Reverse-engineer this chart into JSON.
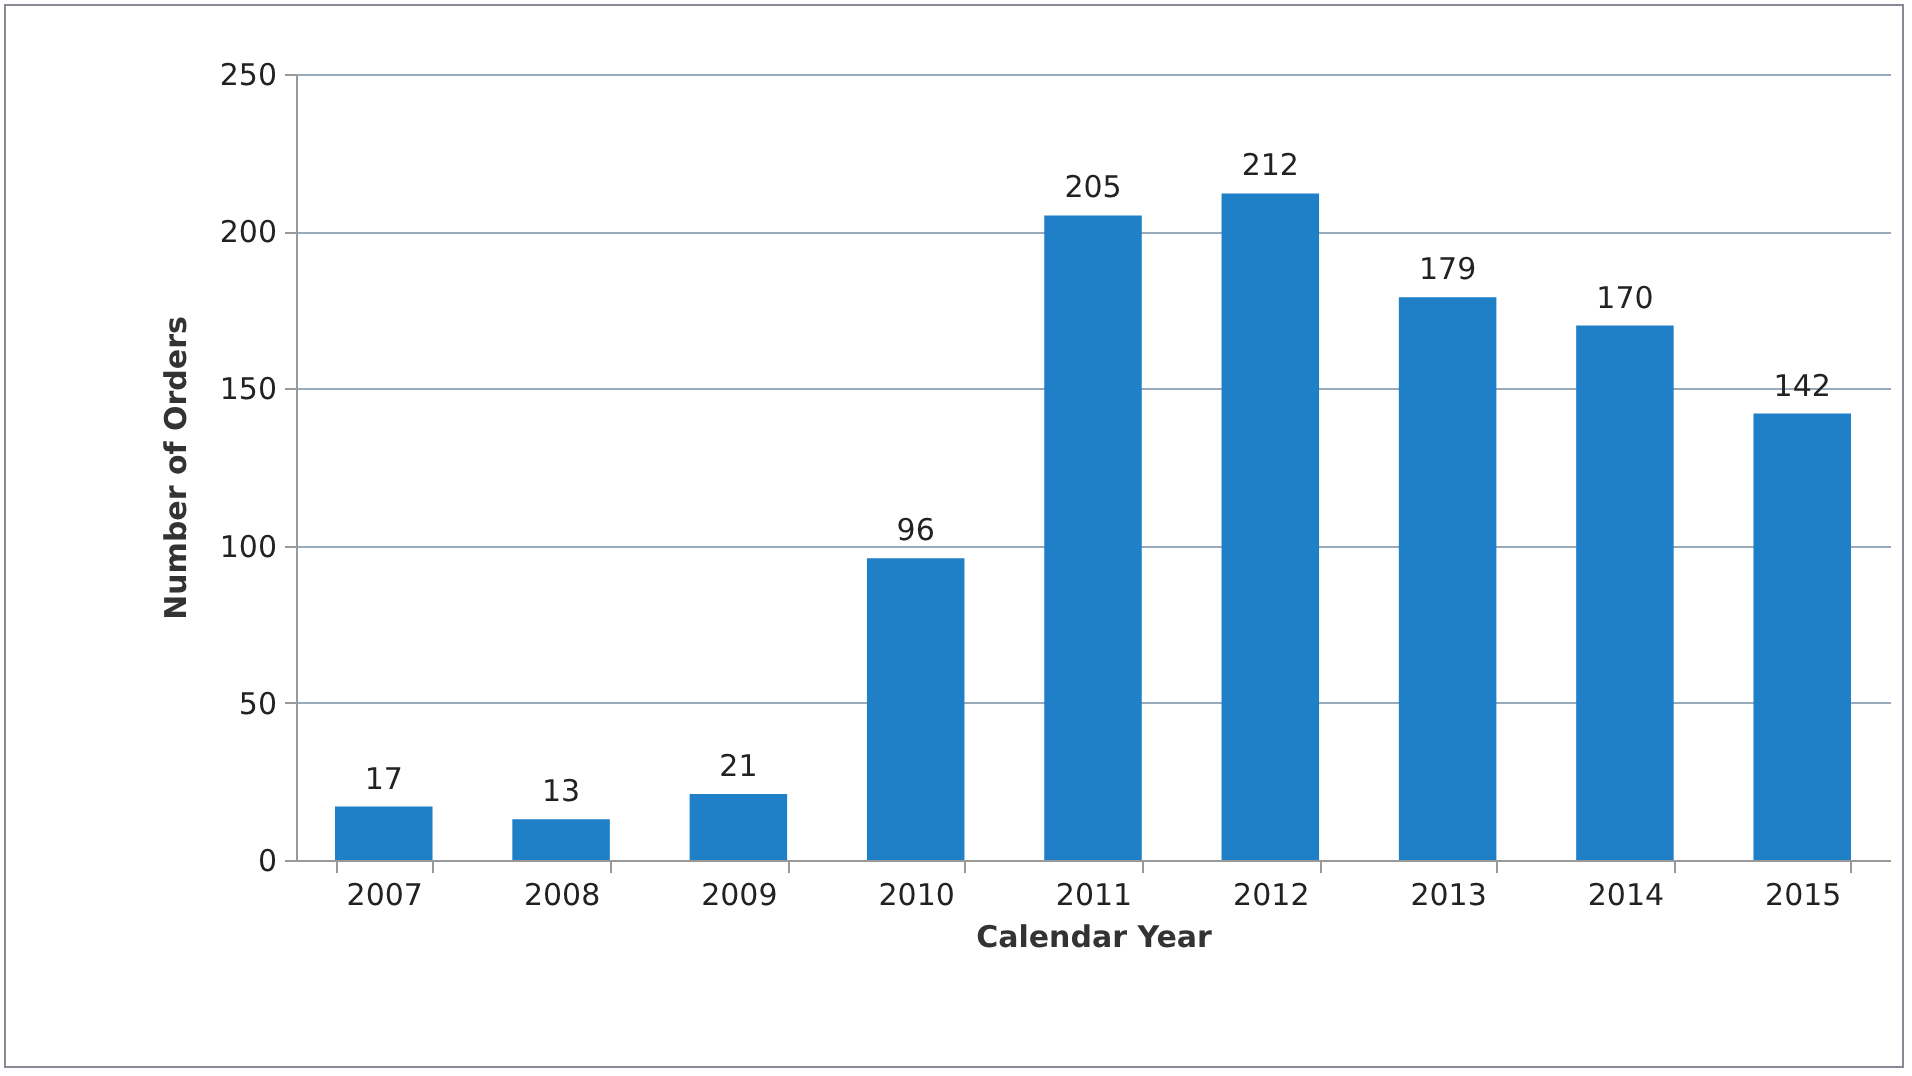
{
  "chart_data": {
    "type": "bar",
    "xlabel": "Calendar Year",
    "ylabel": "Number of Orders",
    "categories": [
      "2007",
      "2008",
      "2009",
      "2010",
      "2011",
      "2012",
      "2013",
      "2014",
      "2015"
    ],
    "values": [
      17,
      13,
      21,
      96,
      205,
      212,
      179,
      170,
      142
    ],
    "color": "#1f80c8",
    "ylim": [
      0,
      250
    ],
    "yticks": [
      0,
      50,
      100,
      150,
      200,
      250
    ],
    "grid": "y",
    "data_labels": true
  }
}
